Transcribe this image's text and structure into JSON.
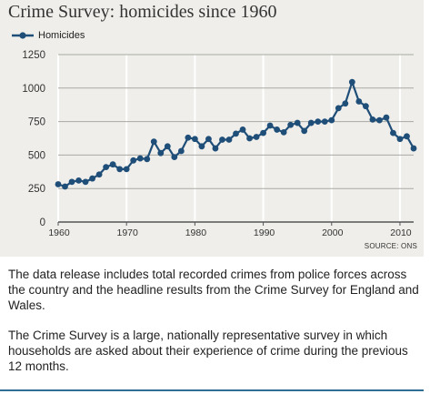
{
  "chart_data": {
    "type": "line",
    "title": "Crime Survey: homicides since 1960",
    "source": "SOURCE: ONS",
    "xlabel": "",
    "ylabel": "",
    "xlim": [
      1960,
      2012
    ],
    "ylim": [
      0,
      1250
    ],
    "x_ticks": [
      1960,
      1970,
      1980,
      1990,
      2000,
      2010
    ],
    "y_ticks": [
      0,
      250,
      500,
      750,
      1000,
      1250
    ],
    "grid": true,
    "legend_position": "top-left",
    "line_color": "#1f4e79",
    "series": [
      {
        "name": "Homicides",
        "x": [
          1960,
          1961,
          1962,
          1963,
          1964,
          1965,
          1966,
          1967,
          1968,
          1969,
          1970,
          1971,
          1972,
          1973,
          1974,
          1975,
          1976,
          1977,
          1978,
          1979,
          1980,
          1981,
          1982,
          1983,
          1984,
          1985,
          1986,
          1987,
          1988,
          1989,
          1990,
          1991,
          1992,
          1993,
          1994,
          1995,
          1996,
          1997,
          1998,
          1999,
          2000,
          2001,
          2002,
          2003,
          2004,
          2005,
          2006,
          2007,
          2008,
          2009,
          2010,
          2011,
          2012
        ],
        "values": [
          282,
          265,
          300,
          310,
          300,
          325,
          355,
          410,
          430,
          395,
          395,
          460,
          475,
          470,
          600,
          515,
          565,
          485,
          530,
          630,
          620,
          565,
          620,
          550,
          615,
          615,
          660,
          690,
          625,
          635,
          665,
          720,
          690,
          670,
          725,
          740,
          680,
          740,
          750,
          750,
          760,
          850,
          885,
          1045,
          900,
          865,
          765,
          760,
          780,
          665,
          620,
          640,
          550
        ]
      }
    ]
  },
  "paragraphs": [
    "The data release includes total recorded crimes from police forces across the country and the headline results from the Crime Survey for England and Wales.",
    "The Crime Survey is a large, nationally representative survey in which households are asked about their experience of crime during the previous 12 months."
  ]
}
